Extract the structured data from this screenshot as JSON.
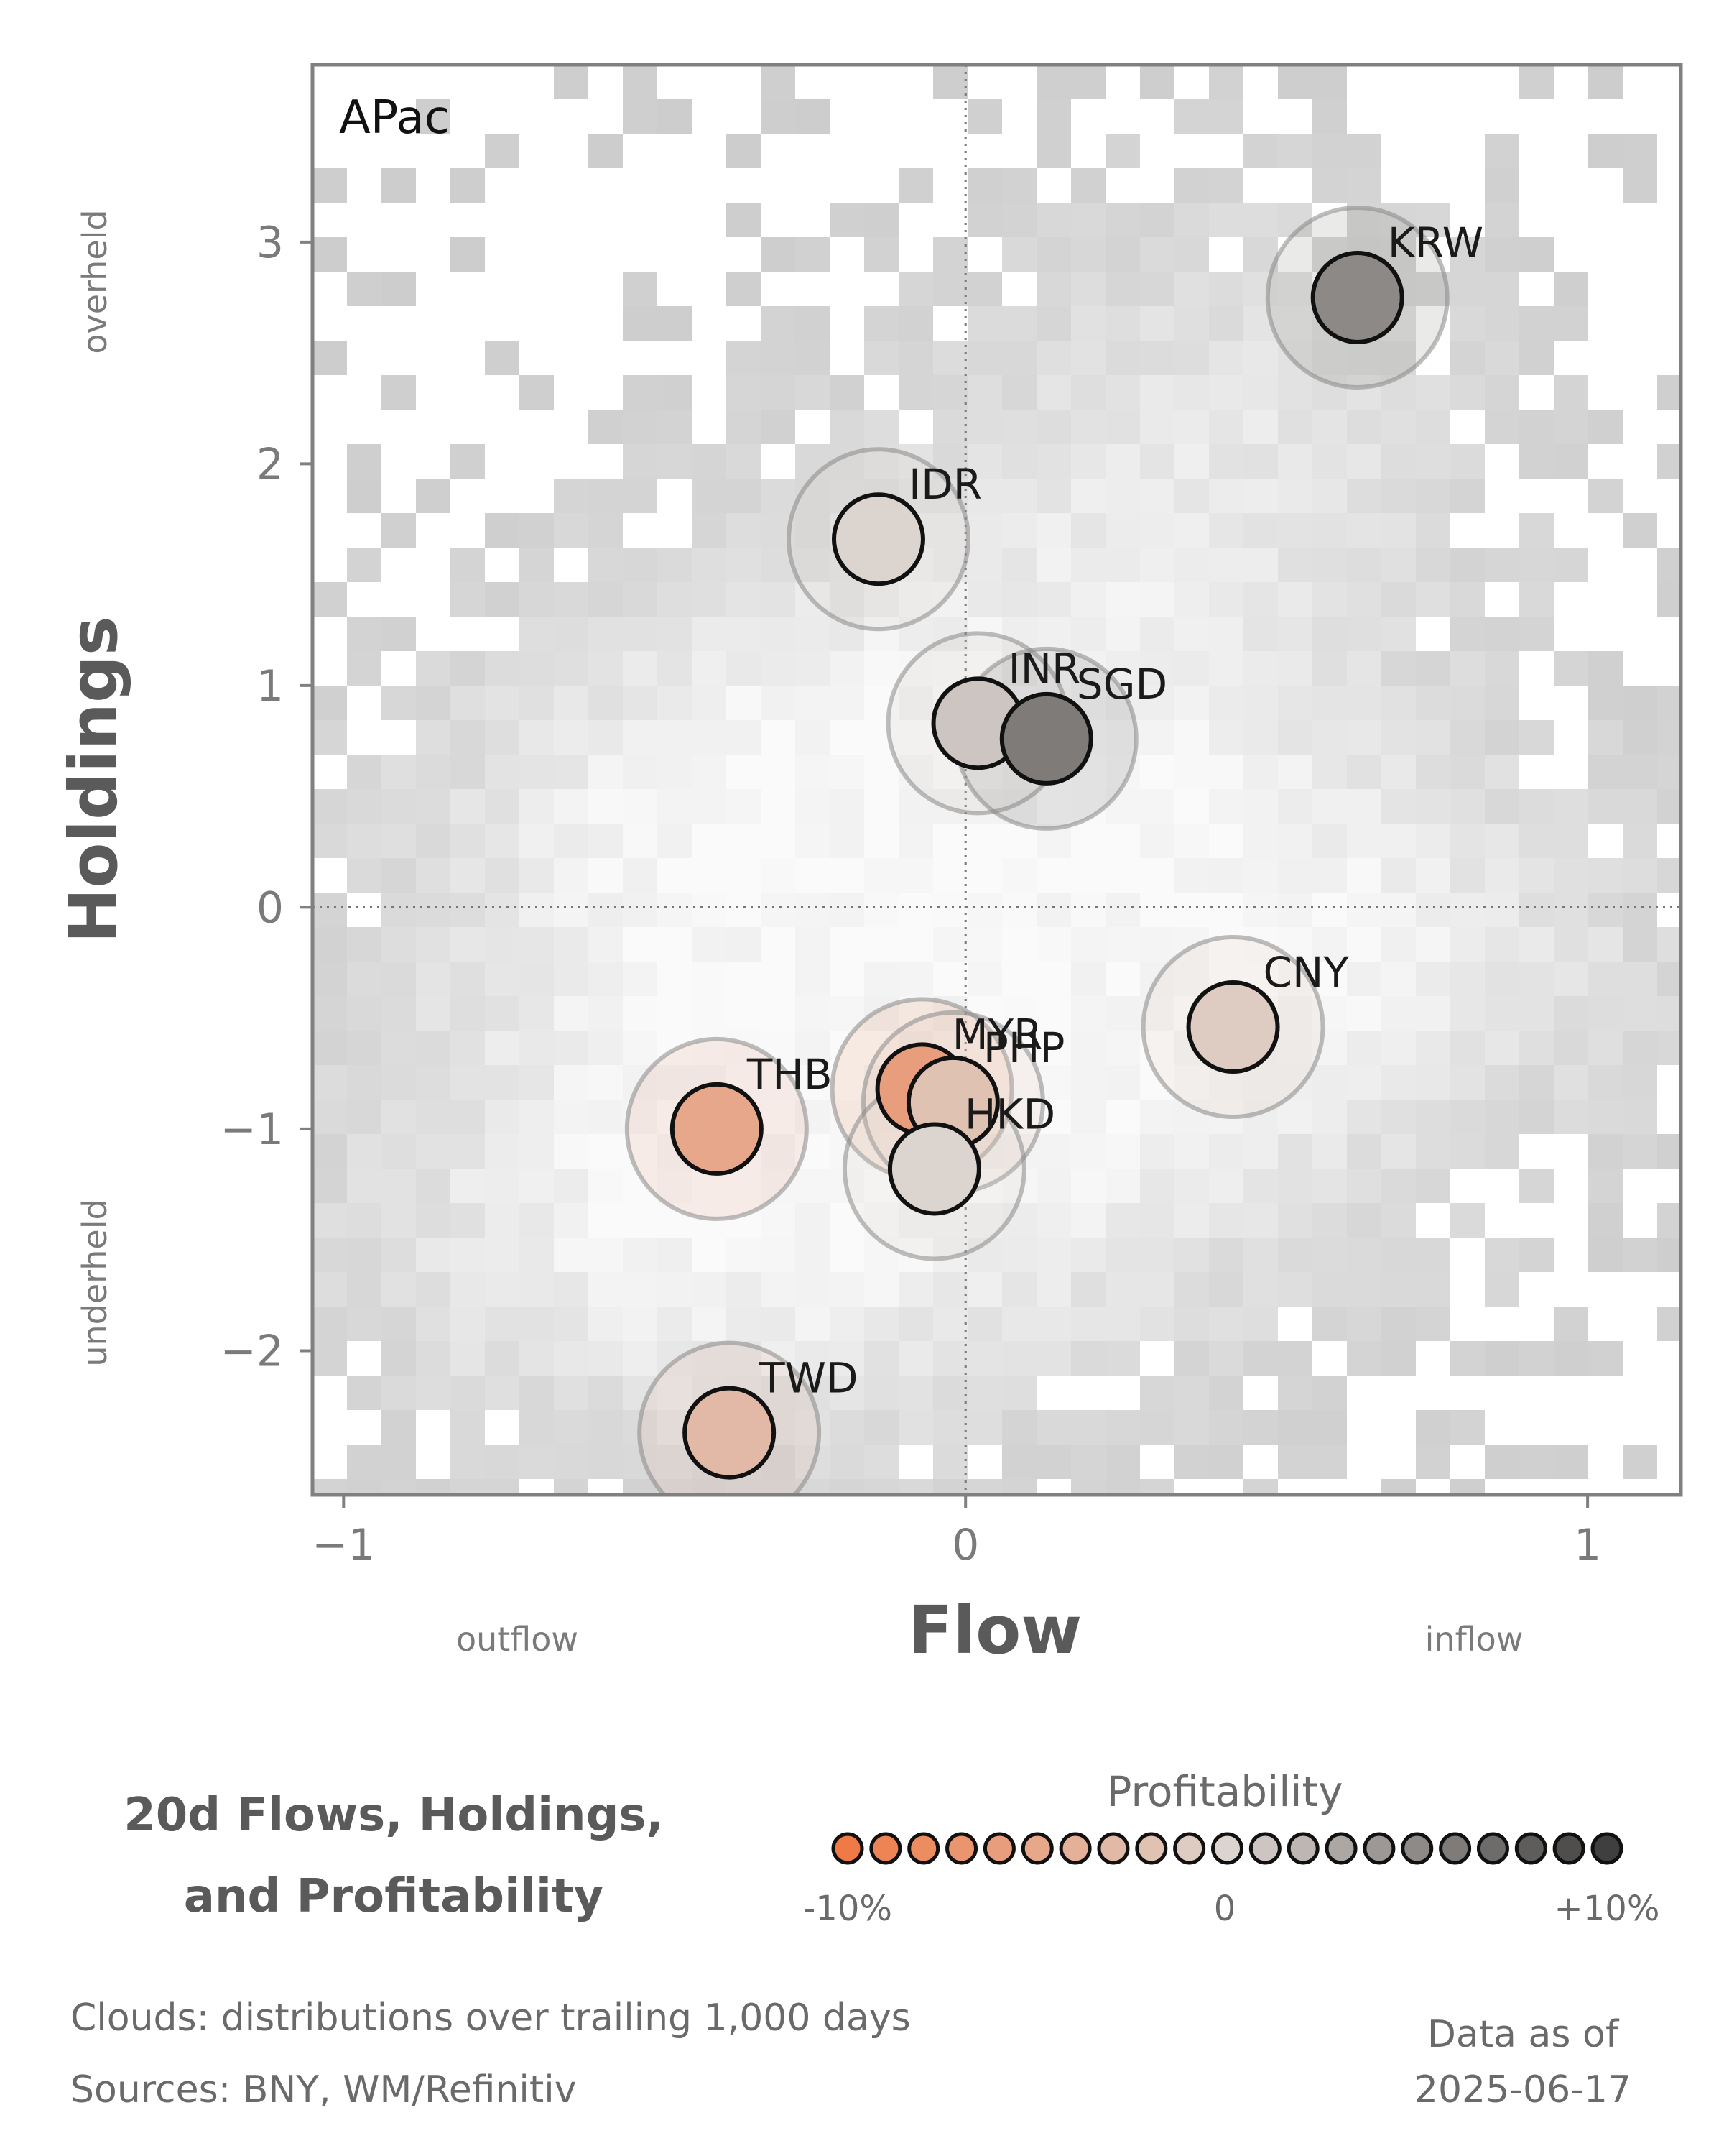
{
  "chart_data": {
    "type": "scatter",
    "region": "APac",
    "title_lines": [
      "20d Flows, Holdings,",
      "and Profitability"
    ],
    "xlabel": "Flow",
    "ylabel": "Holdings",
    "x_left_note": "outflow",
    "x_right_note": "inflow",
    "y_top_note": "overheld",
    "y_bottom_note": "underheld",
    "xlim": [
      -1.05,
      1.15
    ],
    "ylim": [
      -2.65,
      3.8
    ],
    "xticks": [
      {
        "value": -1,
        "label": "−1"
      },
      {
        "value": 0,
        "label": "0"
      },
      {
        "value": 1,
        "label": "1"
      }
    ],
    "yticks": [
      {
        "value": -2,
        "label": "−2"
      },
      {
        "value": -1,
        "label": "−1"
      },
      {
        "value": 0,
        "label": "0"
      },
      {
        "value": 1,
        "label": "1"
      },
      {
        "value": 2,
        "label": "2"
      },
      {
        "value": 3,
        "label": "3"
      }
    ],
    "reference_lines": {
      "x": 0,
      "y": 0,
      "style": "dotted"
    },
    "background": "grey density clouds (2D histogram)",
    "points": [
      {
        "name": "KRW",
        "x": 0.63,
        "y": 2.75,
        "profitability": 0.05
      },
      {
        "name": "IDR",
        "x": -0.14,
        "y": 1.66,
        "profitability": 0.0
      },
      {
        "name": "INR",
        "x": 0.02,
        "y": 0.83,
        "profitability": 0.01
      },
      {
        "name": "SGD",
        "x": 0.13,
        "y": 0.76,
        "profitability": 0.06
      },
      {
        "name": "CNY",
        "x": 0.43,
        "y": -0.54,
        "profitability": -0.01
      },
      {
        "name": "MYR",
        "x": -0.07,
        "y": -0.82,
        "profitability": -0.06
      },
      {
        "name": "PHP",
        "x": -0.02,
        "y": -0.88,
        "profitability": -0.02
      },
      {
        "name": "HKD",
        "x": -0.05,
        "y": -1.18,
        "profitability": 0.0
      },
      {
        "name": "THB",
        "x": -0.4,
        "y": -1.0,
        "profitability": -0.05
      },
      {
        "name": "TWD",
        "x": -0.38,
        "y": -2.37,
        "profitability": -0.03
      }
    ],
    "legend": {
      "title": "Profitability",
      "min_label": "-10%",
      "mid_label": "0",
      "max_label": "+10%",
      "range": [
        -0.1,
        0.1
      ]
    },
    "colors": {
      "negative": "#f07a45",
      "neutral": "#dcd4cf",
      "positive": "#3f3f3f",
      "cloud": "#c8c8c8",
      "frame": "#808080"
    }
  },
  "footer": {
    "clouds_note": "Clouds:  distributions over trailing 1,000 days",
    "sources_note": "Sources:  BNY, WM/Refinitiv",
    "asof_label": "Data as of",
    "asof_date": "2025-06-17"
  }
}
